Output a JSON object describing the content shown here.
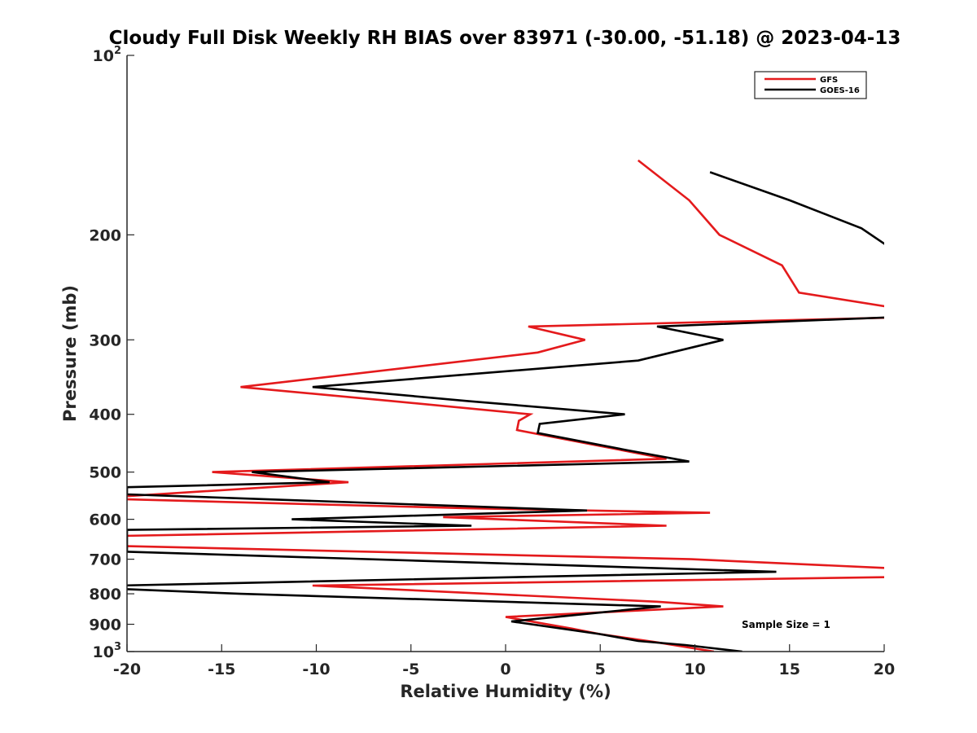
{
  "chart_data": {
    "type": "line",
    "title": "Cloudy Full Disk Weekly RH BIAS over 83971 (-30.00, -51.18) @ 2023-04-13",
    "xlabel": "Relative Humidity (%)",
    "ylabel": "Pressure (mb)",
    "xlim": [
      -20,
      20
    ],
    "ylim": [
      100,
      1000
    ],
    "yscale": "log",
    "y_reversed": true,
    "grid": false,
    "legend_position": "top-right",
    "x_ticks": [
      "-20",
      "-15",
      "-10",
      "-5",
      "0",
      "5",
      "10",
      "15",
      "20"
    ],
    "x_tick_values": [
      -20,
      -15,
      -10,
      -5,
      0,
      5,
      10,
      15,
      20
    ],
    "y_ticks": [
      {
        "value": 100,
        "base": "10",
        "exp": "2"
      },
      {
        "value": 200,
        "label": "200"
      },
      {
        "value": 300,
        "label": "300"
      },
      {
        "value": 400,
        "label": "400"
      },
      {
        "value": 500,
        "label": "500"
      },
      {
        "value": 600,
        "label": "600"
      },
      {
        "value": 700,
        "label": "700"
      },
      {
        "value": 800,
        "label": "800"
      },
      {
        "value": 900,
        "label": "900"
      },
      {
        "value": 1000,
        "base": "10",
        "exp": "3"
      }
    ],
    "series": [
      {
        "name": "GFS",
        "color": "#e41a1c",
        "points": [
          [
            7.0,
            150
          ],
          [
            9.7,
            175
          ],
          [
            11.3,
            200
          ],
          [
            14.6,
            225
          ],
          [
            15.5,
            250
          ],
          [
            20.5,
            265
          ],
          [
            21.0,
            275
          ],
          [
            1.2,
            285
          ],
          [
            4.2,
            300
          ],
          [
            1.7,
            315
          ],
          [
            -14.0,
            360
          ],
          [
            -6.0,
            380
          ],
          [
            1.3,
            400
          ],
          [
            0.7,
            410
          ],
          [
            0.6,
            425
          ],
          [
            8.5,
            475
          ],
          [
            -15.5,
            500
          ],
          [
            -8.3,
            520
          ],
          [
            -20.5,
            550
          ],
          [
            -20.5,
            555
          ],
          [
            -2.0,
            575
          ],
          [
            10.8,
            585
          ],
          [
            -3.3,
            595
          ],
          [
            8.5,
            615
          ],
          [
            -20.5,
            640
          ],
          [
            -20.5,
            665
          ],
          [
            9.8,
            700
          ],
          [
            20.5,
            725
          ],
          [
            20.5,
            750
          ],
          [
            -10.2,
            775
          ],
          [
            8.0,
            825
          ],
          [
            11.5,
            840
          ],
          [
            0.0,
            875
          ],
          [
            3.5,
            915
          ],
          [
            5.0,
            935
          ],
          [
            8.0,
            965
          ],
          [
            11.0,
            1000
          ]
        ]
      },
      {
        "name": "GOES-16",
        "color": "#000000",
        "points": [
          [
            10.8,
            157
          ],
          [
            15.0,
            175
          ],
          [
            18.8,
            195
          ],
          [
            20.3,
            210
          ],
          [
            21.0,
            265
          ],
          [
            20.3,
            275
          ],
          [
            8.0,
            285
          ],
          [
            11.5,
            300
          ],
          [
            7.0,
            325
          ],
          [
            -10.2,
            360
          ],
          [
            -2.0,
            380
          ],
          [
            6.3,
            400
          ],
          [
            1.8,
            415
          ],
          [
            1.7,
            430
          ],
          [
            6.5,
            460
          ],
          [
            9.7,
            480
          ],
          [
            -13.4,
            500
          ],
          [
            -9.3,
            520
          ],
          [
            -20.0,
            530
          ],
          [
            -20.0,
            545
          ],
          [
            4.3,
            580
          ],
          [
            -11.3,
            600
          ],
          [
            -1.8,
            615
          ],
          [
            -20.0,
            625
          ],
          [
            -20.0,
            680
          ],
          [
            14.3,
            735
          ],
          [
            5.0,
            745
          ],
          [
            -20.5,
            775
          ],
          [
            -20.5,
            785
          ],
          [
            -14.0,
            800
          ],
          [
            8.2,
            840
          ],
          [
            5.0,
            860
          ],
          [
            0.3,
            890
          ],
          [
            5.0,
            935
          ],
          [
            7.0,
            960
          ],
          [
            9.5,
            975
          ],
          [
            12.5,
            1000
          ]
        ]
      }
    ],
    "annotation": "Sample Size = 1"
  }
}
